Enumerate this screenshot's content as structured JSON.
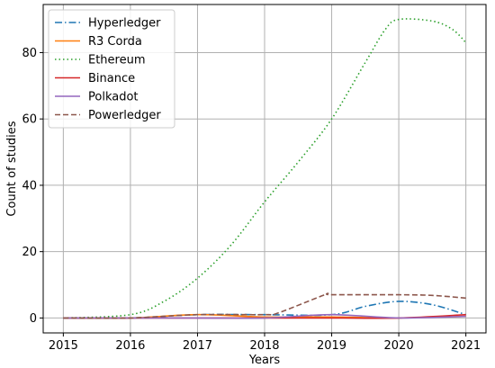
{
  "chart_data": {
    "type": "line",
    "title": "",
    "xlabel": "Years",
    "ylabel": "Count of studies",
    "x": [
      2015,
      2016,
      2017,
      2018,
      2019,
      2020,
      2021
    ],
    "xlim": [
      2014.7,
      2021.3
    ],
    "ylim": [
      -4.5,
      94.5
    ],
    "xticks": [
      2015,
      2016,
      2017,
      2018,
      2019,
      2020,
      2021
    ],
    "yticks": [
      0,
      20,
      40,
      60,
      80
    ],
    "grid": true,
    "legend_position": "top-left",
    "series": [
      {
        "name": "Hyperledger",
        "color": "#1f77b4",
        "dash": "dashdot",
        "points": [
          [
            2015,
            0
          ],
          [
            2016,
            0
          ],
          [
            2017,
            1
          ],
          [
            2018,
            1
          ],
          [
            2019,
            1
          ],
          [
            2019.5,
            3.5
          ],
          [
            2020,
            5
          ],
          [
            2020.5,
            4
          ],
          [
            2021,
            1
          ]
        ]
      },
      {
        "name": " R3 Corda",
        "color": "#ff7f0e",
        "dash": "solid",
        "points": [
          [
            2015,
            0
          ],
          [
            2016,
            0
          ],
          [
            2017,
            1
          ],
          [
            2018,
            0.3
          ],
          [
            2019,
            0.3
          ],
          [
            2020,
            0
          ],
          [
            2021,
            0.5
          ]
        ]
      },
      {
        "name": "Ethereum",
        "color": "#2ca02c",
        "dash": "dotted",
        "points": [
          [
            2015,
            0
          ],
          [
            2016,
            1
          ],
          [
            2016.5,
            5
          ],
          [
            2017,
            12
          ],
          [
            2017.5,
            22
          ],
          [
            2018,
            35
          ],
          [
            2018.5,
            47
          ],
          [
            2019,
            60
          ],
          [
            2019.5,
            77
          ],
          [
            2019.8,
            87
          ],
          [
            2020,
            90
          ],
          [
            2020.5,
            89.5
          ],
          [
            2020.8,
            87
          ],
          [
            2021,
            83
          ]
        ]
      },
      {
        "name": "Binance",
        "color": "#d62728",
        "dash": "solid",
        "points": [
          [
            2015,
            0
          ],
          [
            2016,
            0
          ],
          [
            2017,
            0
          ],
          [
            2018,
            0
          ],
          [
            2019,
            0
          ],
          [
            2020,
            0
          ],
          [
            2021,
            1
          ]
        ]
      },
      {
        "name": "Polkadot",
        "color": "#9467bd",
        "dash": "solid",
        "points": [
          [
            2015,
            0
          ],
          [
            2016,
            0
          ],
          [
            2017,
            0
          ],
          [
            2018,
            0
          ],
          [
            2019,
            1
          ],
          [
            2020,
            0
          ],
          [
            2021,
            0.5
          ]
        ]
      },
      {
        "name": "Powerledger",
        "color": "#8c564b",
        "dash": "dashed",
        "points": [
          [
            2015,
            0
          ],
          [
            2016,
            0
          ],
          [
            2017,
            1
          ],
          [
            2018,
            1
          ],
          [
            2018.2,
            1.5
          ],
          [
            2018.9,
            7
          ],
          [
            2019,
            7
          ],
          [
            2020,
            7
          ],
          [
            2020.5,
            6.8
          ],
          [
            2021,
            6
          ]
        ]
      }
    ]
  }
}
